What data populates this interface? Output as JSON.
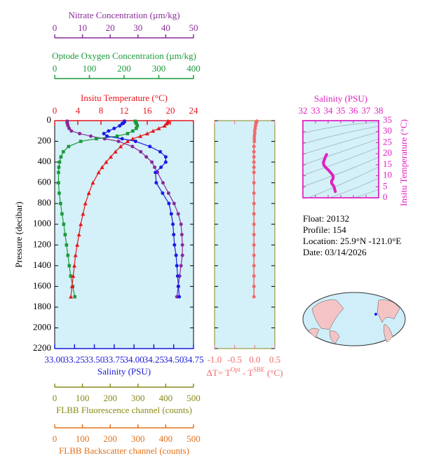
{
  "chart_data": [
    {
      "type": "profile",
      "y_label": "Pressure (decibar)",
      "ylim": [
        0,
        2200
      ],
      "yticks": [
        0,
        200,
        400,
        600,
        800,
        1000,
        1200,
        1400,
        1600,
        1800,
        2000,
        2200
      ],
      "background": "#d4f0f8",
      "x_axes": [
        {
          "label": "Nitrate Concentration (µm/kg)",
          "color": "#8a2a9a",
          "side": "top",
          "xlim": [
            0,
            50
          ],
          "xticks": [
            0,
            10,
            20,
            30,
            40,
            50
          ]
        },
        {
          "label": "Optode Oxygen Concentration (µm/kg)",
          "color": "#1a9a3a",
          "side": "top",
          "xlim": [
            0,
            400
          ],
          "xticks": [
            0,
            100,
            200,
            300,
            400
          ]
        },
        {
          "label": "Insitu Temperature (°C)",
          "color": "#e8141b",
          "side": "top",
          "xlim": [
            0,
            24
          ],
          "xticks": [
            0,
            4,
            8,
            12,
            16,
            20,
            24
          ]
        },
        {
          "label": "Salinity (PSU)",
          "color": "#1a1ad6",
          "side": "bottom",
          "xlim": [
            33,
            34.75
          ],
          "xticks": [
            {
              "value": 33,
              "label": "33.00"
            },
            {
              "value": 33.25,
              "label": "33.25"
            },
            {
              "value": 33.5,
              "label": "33.50"
            },
            {
              "value": 33.75,
              "label": "33.75"
            },
            {
              "value": 34,
              "label": "34.00"
            },
            {
              "value": 34.25,
              "label": "34.25"
            },
            {
              "value": 34.5,
              "label": "34.50"
            },
            {
              "value": 34.75,
              "label": "34.75"
            }
          ]
        },
        {
          "label": "FLBB Fluorescence channel (counts)",
          "color": "#8a8a1a",
          "side": "bottom",
          "xlim": [
            0,
            500
          ],
          "xticks": [
            0,
            100,
            200,
            300,
            400,
            500
          ]
        },
        {
          "label": "FLBB Backscatter channel (counts)",
          "color": "#e0701a",
          "side": "bottom",
          "xlim": [
            0,
            500
          ],
          "xticks": [
            0,
            100,
            200,
            300,
            400,
            500
          ]
        }
      ],
      "pressure": [
        5,
        10,
        20,
        30,
        50,
        75,
        100,
        125,
        150,
        175,
        200,
        250,
        300,
        350,
        400,
        450,
        500,
        600,
        700,
        800,
        900,
        1000,
        1100,
        1200,
        1300,
        1400,
        1500,
        1600,
        1700
      ],
      "series": [
        {
          "x_axis": 0,
          "color": "#8a2a9a",
          "marker": "circle",
          "values": [
            4.5,
            4.5,
            4.5,
            4.6,
            4.8,
            5.2,
            6,
            9,
            13,
            18,
            23,
            28,
            31,
            33,
            35,
            36,
            37,
            39,
            41,
            43,
            44.5,
            45.5,
            45.8,
            46,
            46,
            45.5,
            45,
            44.5,
            44
          ]
        },
        {
          "x_axis": 1,
          "color": "#1a9a3a",
          "marker": "square",
          "values": [
            232,
            233,
            234,
            236,
            238,
            235,
            225,
            210,
            180,
            120,
            75,
            40,
            25,
            18,
            14,
            12,
            11,
            11,
            13,
            17,
            21,
            26,
            30,
            34,
            38,
            42,
            46,
            52,
            58
          ]
        },
        {
          "x_axis": 2,
          "color": "#e8141b",
          "marker": "triangle",
          "values": [
            19.6,
            19.6,
            19.5,
            19.3,
            19.0,
            18.0,
            17.0,
            16.0,
            14.8,
            13.5,
            12.6,
            11.4,
            10.5,
            9.7,
            8.9,
            8.2,
            7.6,
            6.6,
            5.9,
            5.3,
            4.9,
            4.5,
            4.2,
            3.9,
            3.6,
            3.4,
            3.2,
            3.0,
            2.8
          ]
        },
        {
          "x_axis": 3,
          "color": "#1a1ae6",
          "marker": "circle",
          "values": [
            33.88,
            33.88,
            33.87,
            33.85,
            33.82,
            33.75,
            33.68,
            33.62,
            33.66,
            33.85,
            34.02,
            34.2,
            34.33,
            34.4,
            34.4,
            34.34,
            34.27,
            34.28,
            34.36,
            34.44,
            34.47,
            34.49,
            34.5,
            34.51,
            34.53,
            34.54,
            34.55,
            34.56,
            34.57
          ]
        }
      ]
    },
    {
      "type": "delta_profile",
      "x_label_parts": [
        "ΔT= T",
        "Opt",
        " - T",
        "SBE",
        " (°C)"
      ],
      "color": "#f06a6a",
      "xlim": [
        -1,
        0.5
      ],
      "xticks": [
        {
          "value": -1,
          "label": "-1.0"
        },
        {
          "value": -0.5,
          "label": "-0.5"
        },
        {
          "value": 0,
          "label": "0.0"
        },
        0.5
      ],
      "ylim": [
        0,
        2200
      ],
      "yticks": [
        0,
        200,
        400,
        600,
        800,
        1000,
        1200,
        1400,
        1600,
        1800,
        2000,
        2200
      ],
      "ytick_labels": false,
      "background": "#d4f0f8",
      "pressure": [
        5,
        10,
        20,
        30,
        50,
        75,
        100,
        125,
        150,
        175,
        200,
        250,
        300,
        350,
        400,
        450,
        500,
        600,
        700,
        800,
        900,
        1000,
        1100,
        1200,
        1300,
        1400,
        1500,
        1600,
        1700
      ],
      "values": [
        0.05,
        0.05,
        0.04,
        0.03,
        0.02,
        0.01,
        0.0,
        0.0,
        -0.01,
        -0.01,
        -0.01,
        -0.02,
        -0.02,
        -0.02,
        -0.02,
        -0.02,
        -0.02,
        -0.02,
        -0.02,
        -0.02,
        -0.02,
        -0.02,
        -0.02,
        -0.02,
        -0.02,
        -0.02,
        -0.02,
        -0.02,
        -0.02
      ]
    },
    {
      "type": "ts",
      "x_label": "Salinity (PSU)",
      "y_label": "Insitu Temperature (°C)",
      "color": "#e020c0",
      "xlim": [
        32,
        38
      ],
      "xticks": [
        32,
        33,
        34,
        35,
        36,
        37,
        38
      ],
      "ylim": [
        0,
        35
      ],
      "yticks": [
        0,
        5,
        10,
        15,
        20,
        25,
        30,
        35
      ],
      "background": "#d4f0f8",
      "x": [
        33.88,
        33.87,
        33.85,
        33.82,
        33.75,
        33.68,
        33.62,
        33.66,
        33.85,
        34.02,
        34.2,
        34.33,
        34.4,
        34.4,
        34.34,
        34.27,
        34.28,
        34.36,
        34.44,
        34.47,
        34.49,
        34.5,
        34.51,
        34.53,
        34.54,
        34.55,
        34.56,
        34.57
      ],
      "y": [
        19.6,
        19.5,
        19.3,
        19.0,
        18.0,
        17.0,
        16.0,
        14.8,
        13.5,
        12.6,
        11.4,
        10.5,
        9.7,
        8.9,
        8.2,
        7.6,
        6.6,
        5.9,
        5.3,
        4.9,
        4.5,
        4.2,
        3.9,
        3.6,
        3.4,
        3.2,
        3.0,
        2.8
      ]
    }
  ],
  "info": [
    "Float:  20132",
    "Profile:  154",
    "Location:  25.9°N  -121.0°E",
    "Date:  03/14/2026"
  ]
}
